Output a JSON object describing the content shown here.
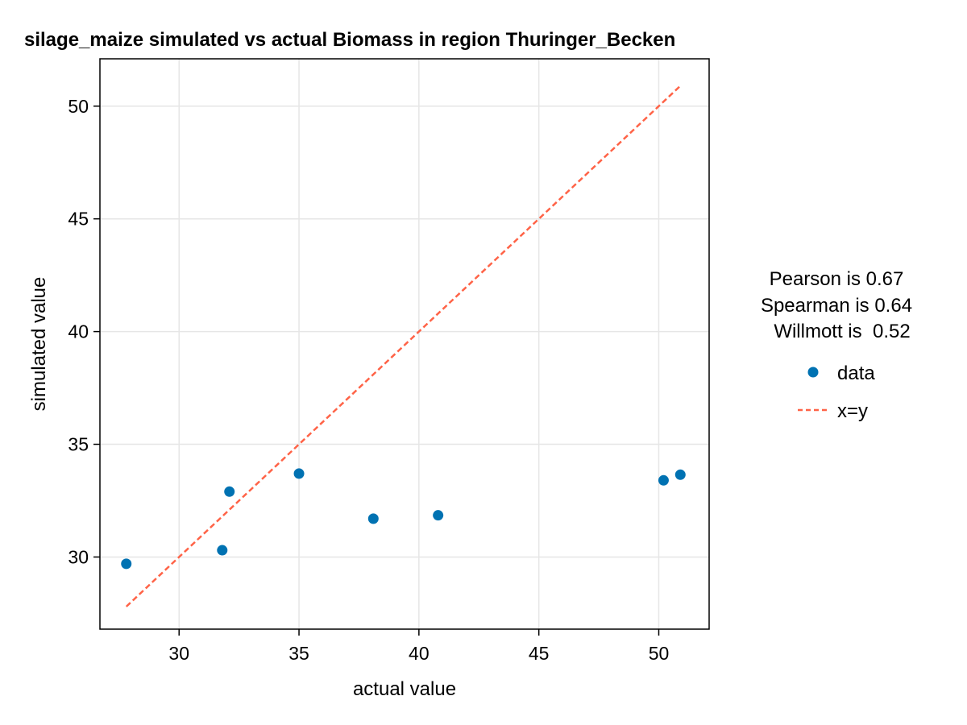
{
  "chart_data": {
    "type": "scatter",
    "title": "silage_maize simulated vs actual Biomass in region Thuringer_Becken",
    "xlabel": "actual value",
    "ylabel": "simulated value",
    "xlim": [
      26.7,
      52.1
    ],
    "ylim": [
      26.8,
      52.1
    ],
    "xticks": [
      30,
      35,
      40,
      45,
      50
    ],
    "yticks": [
      30,
      35,
      40,
      45,
      50
    ],
    "grid": true,
    "series": [
      {
        "name": "data",
        "kind": "points",
        "color": "#0072B2",
        "points": [
          {
            "x": 27.8,
            "y": 29.7
          },
          {
            "x": 31.8,
            "y": 30.3
          },
          {
            "x": 32.1,
            "y": 32.9
          },
          {
            "x": 35.0,
            "y": 33.7
          },
          {
            "x": 38.1,
            "y": 31.7
          },
          {
            "x": 40.8,
            "y": 31.85
          },
          {
            "x": 50.2,
            "y": 33.4
          },
          {
            "x": 50.9,
            "y": 33.65
          }
        ]
      },
      {
        "name": "x=y",
        "kind": "dashed-line",
        "color": "#FF6347",
        "points": [
          {
            "x": 27.8,
            "y": 27.8
          },
          {
            "x": 50.9,
            "y": 50.9
          }
        ]
      }
    ],
    "stats": [
      "Pearson is 0.67",
      "Spearman is 0.64",
      "Willmott is  0.52"
    ],
    "legend": {
      "placement": "right",
      "entries": [
        {
          "label": "data",
          "kind": "point",
          "color": "#0072B2"
        },
        {
          "label": "x=y",
          "kind": "dashed-line",
          "color": "#FF6347"
        }
      ]
    }
  }
}
